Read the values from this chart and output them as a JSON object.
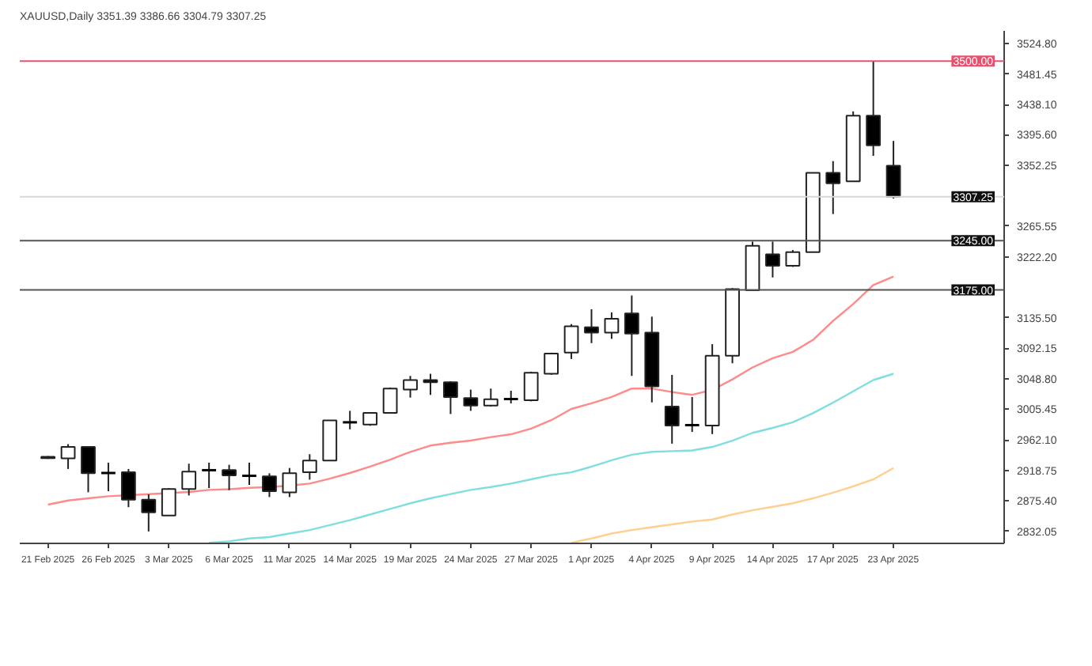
{
  "chart_data": {
    "type": "candlestick",
    "title": "XAUUSD,Daily  3351.39 3386.66 3304.79 3307.25",
    "categories": [
      "21 Feb 2025",
      null,
      null,
      "26 Feb 2025",
      null,
      null,
      "3 Mar 2025",
      null,
      null,
      "6 Mar 2025",
      null,
      null,
      "11 Mar 2025",
      null,
      null,
      "14 Mar 2025",
      null,
      null,
      "19 Mar 2025",
      null,
      null,
      "24 Mar 2025",
      null,
      null,
      "27 Mar 2025",
      null,
      null,
      "1 Apr 2025",
      null,
      null,
      "4 Apr 2025",
      null,
      null,
      "9 Apr 2025",
      null,
      null,
      "14 Apr 2025",
      null,
      null,
      "17 Apr 2025",
      null,
      null,
      "23 Apr 2025"
    ],
    "ohlc": [
      [
        2938,
        2939,
        2935,
        2936
      ],
      [
        2935.7,
        2956,
        2920.7,
        2952.2
      ],
      [
        2952.2,
        2952.2,
        2887.6,
        2914.6
      ],
      [
        2916,
        2929.7,
        2889.1,
        2915
      ],
      [
        2916.1,
        2920.7,
        2866.5,
        2877.1
      ],
      [
        2877.1,
        2884.6,
        2832,
        2859
      ],
      [
        2854.5,
        2893.6,
        2854.5,
        2892.1
      ],
      [
        2892.1,
        2928.2,
        2883.1,
        2916.9
      ],
      [
        2918,
        2929.7,
        2893.6,
        2919
      ],
      [
        2919.1,
        2926.7,
        2890.6,
        2911.6
      ],
      [
        2911.6,
        2929.7,
        2898.1,
        2911
      ],
      [
        2910.1,
        2914.6,
        2880.8,
        2889.1
      ],
      [
        2887.6,
        2922.1,
        2880.8,
        2914.6
      ],
      [
        2916.1,
        2941.7,
        2905.6,
        2932.7
      ],
      [
        2932.7,
        2990,
        2932,
        2989.8
      ],
      [
        2988.3,
        3003.3,
        2977,
        2987
      ],
      [
        2983.8,
        3001,
        2982,
        3000.3
      ],
      [
        3000.3,
        3036.4,
        2999.6,
        3034.9
      ],
      [
        3033.4,
        3052.9,
        3022.1,
        3046.9
      ],
      [
        3046.9,
        3055.9,
        3025.9,
        3043.9
      ],
      [
        3043.9,
        3045.4,
        2998.8,
        3022.9
      ],
      [
        3021.4,
        3033.4,
        3003.3,
        3010.8
      ],
      [
        3010.8,
        3034.9,
        3009.3,
        3019.8
      ],
      [
        3019,
        3031.8,
        3013.8,
        3020
      ],
      [
        3018.3,
        3058.9,
        3016.8,
        3057.4
      ],
      [
        3055.9,
        3085.9,
        3054.4,
        3084.5
      ],
      [
        3085.9,
        3126.5,
        3076.9,
        3123.5
      ],
      [
        3122,
        3147.6,
        3099.5,
        3114.5
      ],
      [
        3114.5,
        3143.1,
        3105.5,
        3134
      ],
      [
        3141.6,
        3167.1,
        3052.9,
        3113
      ],
      [
        3114.5,
        3137.1,
        3015.3,
        3037.9
      ],
      [
        3009.3,
        3054.4,
        2956.7,
        2982.3
      ],
      [
        2982.3,
        3022.9,
        2973.3,
        2983
      ],
      [
        2982.3,
        3098,
        2970.3,
        3081.5
      ],
      [
        3081.5,
        3177.6,
        3070.9,
        3176.1
      ],
      [
        3174.6,
        3243.7,
        3174.6,
        3237.7
      ],
      [
        3225.7,
        3243.7,
        3192.7,
        3209.2
      ],
      [
        3209.2,
        3231.7,
        3207.7,
        3228.7
      ],
      [
        3228.7,
        3341.4,
        3228.7,
        3341.4
      ],
      [
        3341.4,
        3358,
        3282.8,
        3326.4
      ],
      [
        3329.4,
        3428.6,
        3329.4,
        3422.6
      ],
      [
        3422.6,
        3500,
        3365.5,
        3380.5
      ],
      [
        3351.39,
        3386.66,
        3304.79,
        3307.25
      ]
    ],
    "series": [
      {
        "type": "line",
        "color": "#ff8a8a",
        "values": [
          2870,
          2876,
          2879,
          2882,
          null,
          2885,
          null,
          2888,
          2891,
          2892,
          2894,
          2895,
          2897,
          2900,
          2907,
          2915,
          2924,
          2934,
          2945,
          2954,
          2958,
          2961,
          2966,
          2970,
          2978,
          2990,
          3006,
          3014,
          3023,
          3035,
          3035,
          3030,
          3026,
          3033,
          3048,
          3065,
          3078,
          3087,
          3104,
          3131,
          3155,
          3182,
          3194
        ]
      },
      {
        "type": "line",
        "color": "#7fdede",
        "values": [
          null,
          null,
          null,
          null,
          null,
          null,
          null,
          null,
          2816,
          2818,
          2822,
          2824,
          2829,
          2834,
          2841,
          2848,
          2856,
          2864,
          2872,
          2879,
          2885,
          2891,
          2895,
          2900,
          2906,
          2912,
          2916,
          2924,
          2933,
          2941,
          2945,
          2946,
          2947,
          2952,
          2961,
          2972,
          2979,
          2987,
          3000,
          3015,
          3031,
          3047,
          3056
        ]
      },
      {
        "type": "line",
        "color": "#ffcf8f",
        "values": [
          null,
          null,
          null,
          null,
          null,
          null,
          null,
          null,
          null,
          null,
          null,
          null,
          null,
          null,
          null,
          null,
          null,
          null,
          null,
          null,
          null,
          null,
          null,
          null,
          null,
          null,
          2816,
          2822,
          2829,
          2834,
          2838,
          2842,
          2846,
          2849,
          2856,
          2862,
          2867,
          2872,
          2879,
          2887,
          2896,
          2906,
          2922
        ]
      }
    ],
    "ylim": [
      2815,
      3543
    ],
    "yticks": [
      {
        "value": 2832.05,
        "label": "2832.05"
      },
      {
        "value": 2875.4,
        "label": "2875.40"
      },
      {
        "value": 2918.75,
        "label": "2918.75"
      },
      {
        "value": 2962.1,
        "label": "2962.10"
      },
      {
        "value": 3005.45,
        "label": "3005.45"
      },
      {
        "value": 3048.8,
        "label": "3048.80"
      },
      {
        "value": 3092.15,
        "label": "3092.15"
      },
      {
        "value": 3135.5,
        "label": "3135.50"
      },
      {
        "value": 3222.2,
        "label": "3222.20"
      },
      {
        "value": 3265.55,
        "label": "3265.55"
      },
      {
        "value": 3352.25,
        "label": "3352.25"
      },
      {
        "value": 3395.6,
        "label": "3395.60"
      },
      {
        "value": 3438.1,
        "label": "3438.10"
      },
      {
        "value": 3481.45,
        "label": "3481.45"
      },
      {
        "value": 3524.8,
        "label": "3524.80"
      }
    ],
    "ref_lines": [
      {
        "axis": "y",
        "value": 3500,
        "label": "3500.00",
        "color": "#e8506e"
      },
      {
        "axis": "y",
        "value": 3307.25,
        "label": "3307.25",
        "color": "#d8d8d8"
      },
      {
        "axis": "y",
        "value": 3245,
        "label": "3245.00",
        "color": "#555555"
      },
      {
        "axis": "y",
        "value": 3175,
        "label": "3175.00",
        "color": "#555555"
      }
    ],
    "grid": false
  }
}
